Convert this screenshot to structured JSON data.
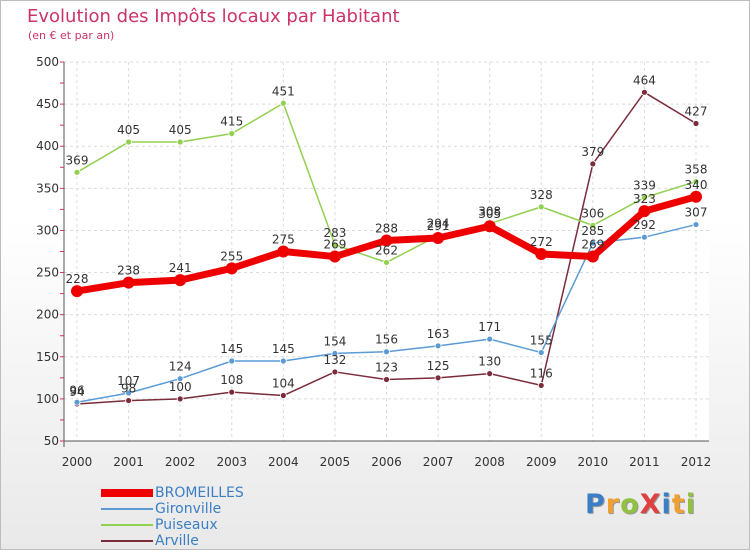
{
  "title": "Evolution des Impôts locaux par Habitant",
  "subtitle": "(en € et par an)",
  "logo": "ProXiti",
  "chart_data": {
    "type": "line",
    "title": "Evolution des Impôts locaux par Habitant",
    "subtitle": "(en € et par an)",
    "xlabel": "",
    "ylabel": "",
    "x": [
      "2000",
      "2001",
      "2002",
      "2003",
      "2004",
      "2005",
      "2006",
      "2007",
      "2008",
      "2009",
      "2010",
      "2011",
      "2012"
    ],
    "ylim": [
      50,
      500
    ],
    "yticks": [
      50,
      100,
      150,
      200,
      250,
      300,
      350,
      400,
      450,
      500
    ],
    "grid": true,
    "legend_position": "bottom-left",
    "series": [
      {
        "name": "Arville",
        "color": "#7b2c3a",
        "width": 1.5,
        "values": [
          94,
          98,
          100,
          108,
          104,
          132,
          123,
          125,
          130,
          116,
          379,
          464,
          427
        ]
      },
      {
        "name": "Gironville",
        "color": "#5b9bd5",
        "width": 1.5,
        "values": [
          96,
          107,
          124,
          145,
          145,
          154,
          156,
          163,
          171,
          155,
          285,
          292,
          307
        ]
      },
      {
        "name": "Puiseaux",
        "color": "#92d050",
        "width": 1.5,
        "values": [
          369,
          405,
          405,
          415,
          451,
          283,
          262,
          294,
          308,
          328,
          306,
          339,
          358
        ]
      },
      {
        "name": "BROMEILLES",
        "color": "#ee0000",
        "width": 7,
        "values": [
          228,
          238,
          241,
          255,
          275,
          269,
          288,
          291,
          305,
          272,
          269,
          323,
          340
        ]
      }
    ]
  },
  "legend_order": [
    "BROMEILLES",
    "Gironville",
    "Puiseaux",
    "Arville"
  ]
}
